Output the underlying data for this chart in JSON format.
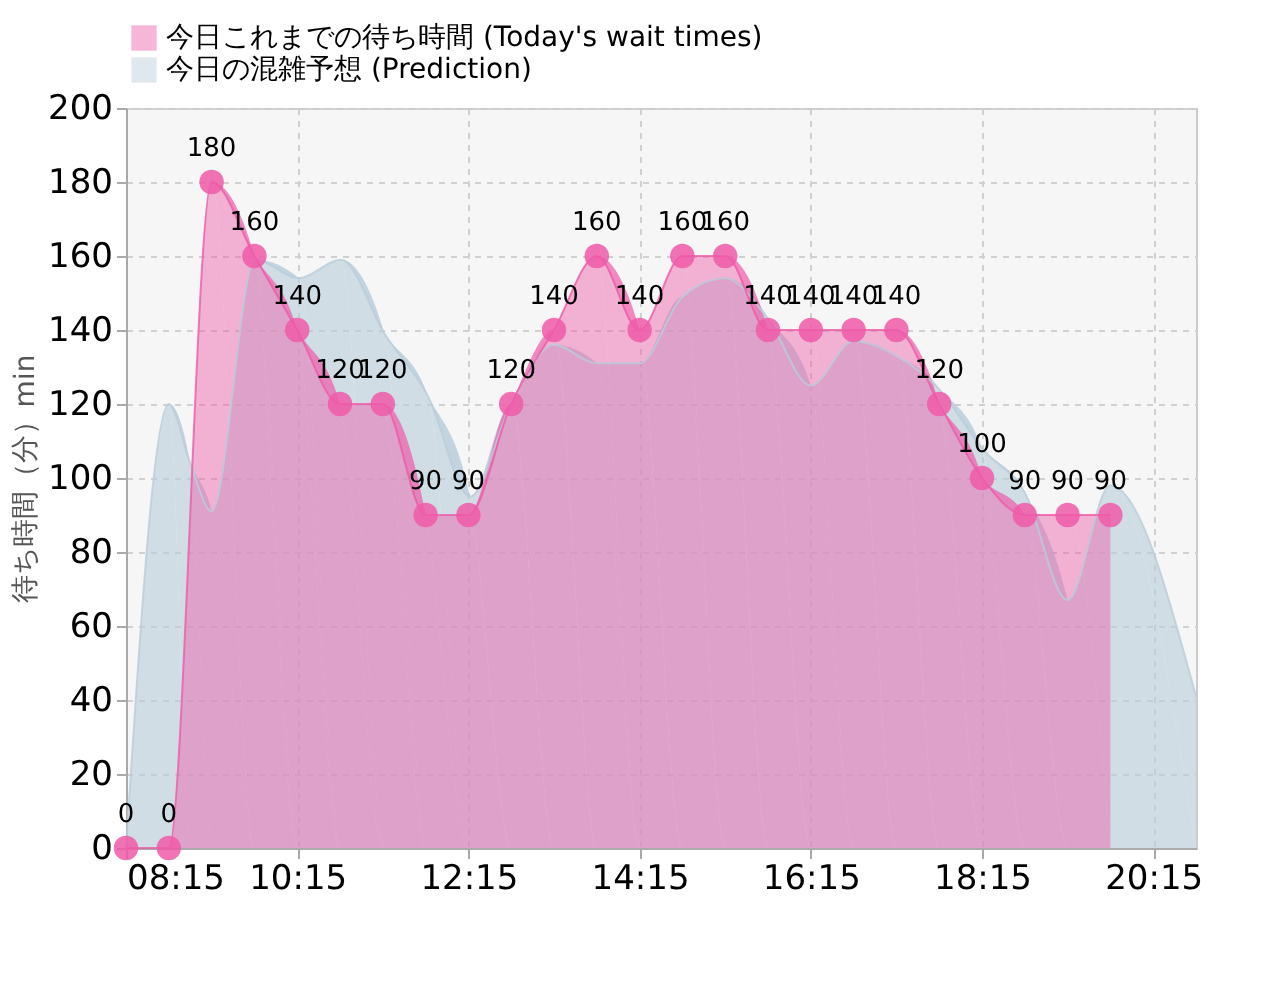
{
  "chart_data": {
    "type": "area",
    "ylabel": "待ち時間（分）min",
    "xlim": [
      8.25,
      20.75
    ],
    "ylim": [
      0,
      200
    ],
    "xticks": [
      {
        "value": 8.25,
        "label": "08:15"
      },
      {
        "value": 10.25,
        "label": "10:15"
      },
      {
        "value": 12.25,
        "label": "12:15"
      },
      {
        "value": 14.25,
        "label": "14:15"
      },
      {
        "value": 16.25,
        "label": "16:15"
      },
      {
        "value": 18.25,
        "label": "18:15"
      },
      {
        "value": 20.25,
        "label": "20:15"
      }
    ],
    "yticks": [
      0,
      20,
      40,
      60,
      80,
      100,
      120,
      140,
      160,
      180,
      200
    ],
    "grid": true,
    "legend": "top left",
    "series": [
      {
        "name": "今日これまでの待ち時間 (Today's wait times)",
        "color": "#ee5aa8",
        "marker": "circle",
        "data_labels": true,
        "x": [
          8.25,
          8.75,
          9.25,
          9.75,
          10.25,
          10.75,
          11.25,
          11.75,
          12.25,
          12.75,
          13.25,
          13.75,
          14.25,
          14.75,
          15.25,
          15.75,
          16.25,
          16.75,
          17.25,
          17.75,
          18.25,
          18.75,
          19.25,
          19.75
        ],
        "values": [
          0,
          0,
          180,
          160,
          140,
          120,
          120,
          90,
          90,
          120,
          140,
          160,
          140,
          160,
          160,
          140,
          140,
          140,
          140,
          120,
          100,
          90,
          90,
          90
        ]
      },
      {
        "name": "今日の混雑予想 (Prediction)",
        "color": "#b9cddb",
        "x": [
          8.25,
          8.75,
          9.0,
          9.25,
          9.76,
          10.27,
          10.76,
          11.27,
          11.78,
          12.27,
          12.75,
          13.25,
          13.75,
          14.25,
          14.75,
          15.25,
          15.75,
          16.25,
          16.75,
          17.25,
          17.75,
          18.25,
          18.75,
          19.25,
          19.75,
          20.75
        ],
        "values": [
          0,
          120,
          104,
          91,
          159,
          154,
          159,
          139,
          122,
          95,
          120,
          136,
          131,
          131,
          149,
          154,
          143,
          125,
          137,
          133,
          124,
          108,
          96,
          67,
          98,
          41
        ]
      }
    ]
  }
}
